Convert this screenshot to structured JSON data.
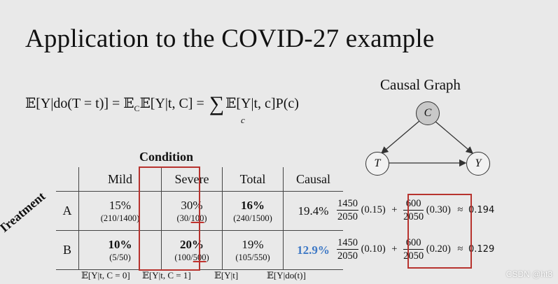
{
  "slide": {
    "title": "Application to the COVID-27 example"
  },
  "formula": {
    "lhs": "𝔼[Y|do(T = t)] = 𝔼",
    "sub_c": "C",
    "mid": "𝔼[Y|t, C] = ",
    "sum": "∑",
    "sum_sub": "c",
    "rhs": "𝔼[Y|t, c]P(c)"
  },
  "table": {
    "condition_label": "Condition",
    "treatment_label": "Treatment",
    "headers": [
      "Mild",
      "Severe",
      "Total",
      "Causal"
    ],
    "rows": [
      {
        "label": "A",
        "mild_pct": "15%",
        "mild_frac": "(210/1400)",
        "severe_pct": "30%",
        "severe_frac_pre": "(30/",
        "severe_frac_ul": "100",
        "severe_frac_post": ")",
        "total_pct": "16%",
        "total_frac": "(240/1500)",
        "causal": "19.4%"
      },
      {
        "label": "B",
        "mild_pct": "10%",
        "mild_frac": "(5/50)",
        "severe_pct": "20%",
        "severe_frac_pre": "(100/",
        "severe_frac_ul": "500",
        "severe_frac_post": ")",
        "total_pct": "19%",
        "total_frac": "(105/550)",
        "causal": "12.9%"
      }
    ],
    "footers": [
      "𝔼[Y|t, C = 0]",
      "𝔼[Y|t, C = 1]",
      "𝔼[Y|t]",
      "𝔼[Y|do(t)]"
    ]
  },
  "graph": {
    "title": "Causal Graph",
    "nodes": {
      "c": "C",
      "t": "T",
      "y": "Y"
    }
  },
  "calculations": [
    {
      "n1": "1450",
      "d1": "2050",
      "p1": "(0.15)",
      "plus": "+",
      "n2": "600",
      "d2": "2050",
      "p2": "(0.30)",
      "approx": "≈",
      "result": "0.194"
    },
    {
      "n1": "1450",
      "d1": "2050",
      "p1": "(0.10)",
      "plus": "+",
      "n2": "600",
      "d2": "2050",
      "p2": "(0.20)",
      "approx": "≈",
      "result": "0.129"
    }
  ],
  "watermark": "CSDN @ht3",
  "colors": {
    "highlight_red": "#b7332e",
    "causal_blue": "#3d78c5",
    "background": "#e9e9e9"
  }
}
